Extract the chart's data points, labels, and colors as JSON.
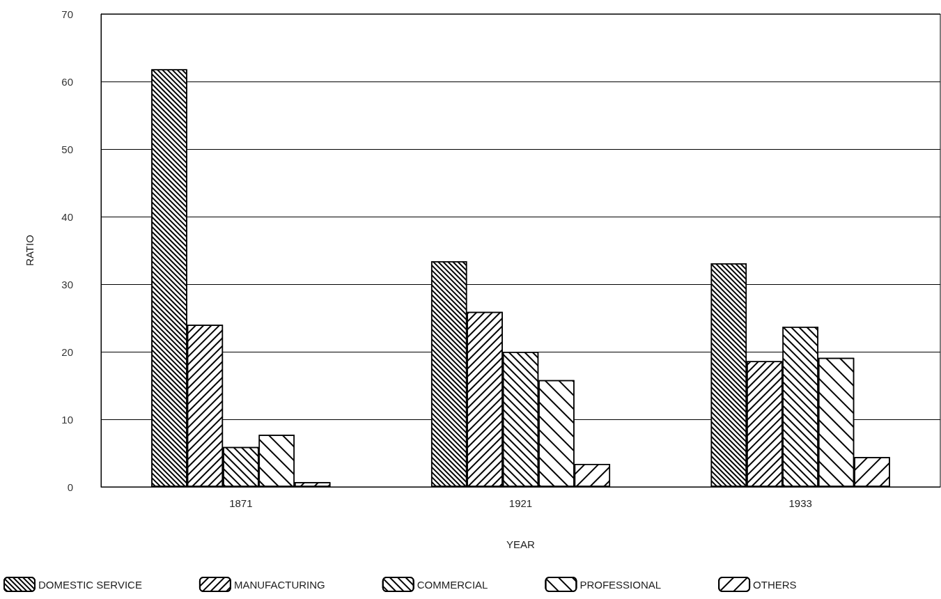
{
  "chart_data": {
    "type": "bar",
    "xlabel": "YEAR",
    "ylabel": "RATIO",
    "categories": [
      "1871",
      "1921",
      "1933"
    ],
    "series": [
      {
        "name": "DOMESTIC SERVICE",
        "color": "#000000",
        "values": [
          61.8,
          33.4,
          33.1
        ]
      },
      {
        "name": "MANUFACTURING",
        "color": "#000000",
        "values": [
          24.0,
          25.9,
          18.6
        ]
      },
      {
        "name": "COMMERCIAL",
        "color": "#000000",
        "values": [
          5.9,
          20.0,
          23.7
        ]
      },
      {
        "name": "PROFESSIONAL",
        "color": "#000000",
        "values": [
          7.7,
          15.8,
          19.1
        ]
      },
      {
        "name": "OTHERS",
        "color": "#000000",
        "values": [
          0.7,
          3.4,
          4.4
        ]
      }
    ],
    "ylim": [
      0,
      70
    ],
    "yticks": [
      0,
      10,
      20,
      30,
      40,
      50,
      60,
      70
    ],
    "grid": "y",
    "legend": "bottom"
  }
}
